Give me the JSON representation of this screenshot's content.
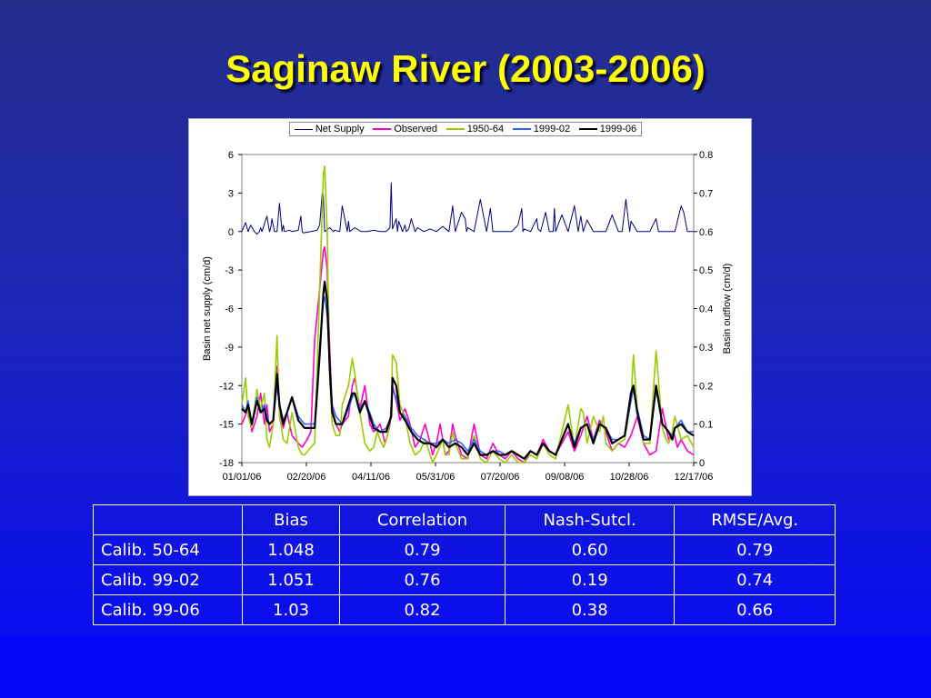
{
  "title": "Saginaw River (2003-2006)",
  "chart_data": {
    "type": "line",
    "xlabel": "",
    "ylabel": "Basin net supply (cm/d)",
    "y2label": "Basin outflow (cm/d)",
    "ylim": [
      -18,
      6
    ],
    "y2lim": [
      0,
      0.8
    ],
    "yticks": [
      "6",
      "3",
      "0",
      "-3",
      "-6",
      "-9",
      "-12",
      "-15",
      "-18"
    ],
    "y2ticks": [
      "0.8",
      "0.7",
      "0.6",
      "0.5",
      "0.4",
      "0.3",
      "0.2",
      "0.1",
      "0"
    ],
    "xticks": [
      "01/01/06",
      "02/20/06",
      "04/11/06",
      "05/31/06",
      "07/20/06",
      "09/08/06",
      "10/28/06",
      "12/17/06"
    ],
    "xlim": [
      0,
      360
    ],
    "grid": false,
    "legend": "top-center",
    "series": [
      {
        "name": "Net Supply",
        "axis": "left",
        "color": "#000080",
        "width": 1,
        "x": [
          0,
          3,
          5,
          7,
          10,
          12,
          14,
          15,
          16,
          20,
          22,
          23,
          24,
          26,
          28,
          30,
          32,
          33,
          34,
          38,
          40,
          45,
          47,
          48,
          49,
          55,
          60,
          62,
          64,
          65,
          66,
          70,
          72,
          73,
          74,
          78,
          80,
          82,
          84,
          85,
          86,
          90,
          95,
          100,
          105,
          110,
          115,
          118,
          119,
          120,
          123,
          124,
          125,
          128,
          130,
          131,
          133,
          135,
          138,
          140,
          145,
          150,
          155,
          160,
          165,
          168,
          169,
          170,
          175,
          178,
          179,
          180,
          185,
          190,
          195,
          198,
          200,
          205,
          210,
          215,
          220,
          223,
          224,
          225,
          230,
          235,
          236,
          238,
          242,
          245,
          248,
          249,
          250,
          255,
          260,
          265,
          268,
          270,
          272,
          275,
          280,
          285,
          290,
          295,
          300,
          303,
          306,
          309,
          310,
          315,
          320,
          325,
          330,
          332,
          335,
          340,
          345,
          350,
          352,
          355,
          360
        ],
        "y": [
          0,
          0.7,
          0,
          0.5,
          0,
          -0.2,
          0,
          0.3,
          0,
          1.2,
          0,
          0.3,
          1.0,
          0,
          0,
          2.2,
          0,
          0.5,
          0,
          0.1,
          0,
          0.1,
          1.2,
          0,
          -0.1,
          0,
          0.1,
          0.5,
          3.0,
          2.8,
          0,
          0.3,
          0.1,
          0,
          0.1,
          0,
          2.0,
          1.0,
          0,
          0.8,
          0,
          0.3,
          0,
          0,
          0.1,
          0,
          0,
          0.3,
          3.8,
          0.2,
          1.0,
          0,
          0.8,
          0,
          0.5,
          0,
          0.2,
          1.0,
          0,
          0.3,
          0,
          0.2,
          0,
          0.4,
          0,
          2.0,
          1.0,
          0,
          1.5,
          1.0,
          0,
          0.3,
          0,
          2.5,
          0,
          1.8,
          0,
          0,
          0,
          0,
          0.5,
          1.8,
          0,
          0.2,
          0,
          1.0,
          0.2,
          0,
          1.5,
          0,
          0,
          1.8,
          0,
          1.3,
          0,
          2.0,
          0,
          1.2,
          0,
          0.9,
          0,
          0,
          0,
          1.3,
          0,
          0,
          2.5,
          0,
          0.8,
          0,
          0,
          0,
          1.0,
          0,
          0,
          0,
          0,
          2.0,
          1.5,
          0,
          0
        ]
      },
      {
        "name": "Observed",
        "axis": "right",
        "color": "#ff00cc",
        "width": 1.6,
        "x": [
          0,
          5,
          8,
          12,
          15,
          18,
          20,
          22,
          25,
          28,
          30,
          33,
          36,
          40,
          45,
          48,
          52,
          55,
          58,
          62,
          65,
          66,
          68,
          70,
          72,
          75,
          78,
          80,
          85,
          88,
          90,
          94,
          98,
          102,
          105,
          108,
          110,
          112,
          114,
          116,
          118,
          120,
          123,
          126,
          130,
          134,
          138,
          142,
          146,
          150,
          152,
          155,
          158,
          160,
          162,
          165,
          168,
          170,
          175,
          180,
          185,
          190,
          195,
          200,
          205,
          210,
          215,
          220,
          225,
          230,
          235,
          240,
          245,
          250,
          255,
          260,
          265,
          270,
          275,
          280,
          285,
          290,
          295,
          300,
          305,
          310,
          315,
          320,
          325,
          330,
          335,
          340,
          344,
          347,
          350,
          355,
          360
        ],
        "y": [
          0.1,
          0.14,
          0.08,
          0.12,
          0.18,
          0.1,
          0.15,
          0.08,
          0.1,
          0.25,
          0.13,
          0.09,
          0.13,
          0.07,
          0.05,
          0.04,
          0.06,
          0.08,
          0.32,
          0.45,
          0.55,
          0.56,
          0.5,
          0.3,
          0.14,
          0.1,
          0.08,
          0.1,
          0.12,
          0.2,
          0.22,
          0.14,
          0.2,
          0.1,
          0.08,
          0.09,
          0.1,
          0.08,
          0.05,
          0.07,
          0.1,
          0.2,
          0.16,
          0.11,
          0.14,
          0.1,
          0.04,
          0.06,
          0.1,
          0.05,
          0.02,
          0.05,
          0.1,
          0.06,
          0.02,
          0.03,
          0.1,
          0.07,
          0.02,
          0.01,
          0.1,
          0.02,
          0.01,
          0.05,
          0.02,
          0.01,
          0.03,
          0.01,
          0.0,
          0.03,
          0.02,
          0.06,
          0.03,
          0.02,
          0.05,
          0.08,
          0.03,
          0.07,
          0.12,
          0.06,
          0.11,
          0.08,
          0.03,
          0.05,
          0.04,
          0.07,
          0.12,
          0.05,
          0.02,
          0.03,
          0.14,
          0.06,
          0.08,
          0.04,
          0.06,
          0.03,
          0.02
        ]
      },
      {
        "name": "1950-64",
        "axis": "right",
        "color": "#99cc00",
        "width": 1.6,
        "x": [
          0,
          3,
          5,
          8,
          12,
          15,
          18,
          20,
          22,
          25,
          28,
          30,
          33,
          36,
          40,
          45,
          48,
          50,
          55,
          58,
          62,
          65,
          66,
          68,
          70,
          72,
          75,
          78,
          80,
          85,
          88,
          90,
          94,
          98,
          102,
          105,
          108,
          110,
          113,
          116,
          119,
          120,
          123,
          126,
          130,
          134,
          138,
          142,
          146,
          150,
          152,
          155,
          160,
          162,
          165,
          168,
          170,
          175,
          180,
          185,
          190,
          195,
          200,
          205,
          210,
          215,
          220,
          225,
          230,
          235,
          240,
          245,
          250,
          255,
          260,
          265,
          270,
          272,
          275,
          280,
          285,
          288,
          290,
          295,
          300,
          305,
          310,
          312,
          315,
          320,
          325,
          330,
          335,
          338,
          340,
          343,
          345,
          350,
          355,
          360
        ],
        "y": [
          0.15,
          0.22,
          0.12,
          0.09,
          0.19,
          0.14,
          0.18,
          0.06,
          0.04,
          0.1,
          0.33,
          0.12,
          0.06,
          0.05,
          0.13,
          0.04,
          0.02,
          0.02,
          0.04,
          0.05,
          0.45,
          0.75,
          0.77,
          0.6,
          0.22,
          0.1,
          0.07,
          0.07,
          0.15,
          0.2,
          0.27,
          0.23,
          0.13,
          0.05,
          0.03,
          0.04,
          0.08,
          0.06,
          0.04,
          0.07,
          0.13,
          0.28,
          0.26,
          0.15,
          0.12,
          0.05,
          0.02,
          0.03,
          0.06,
          0.02,
          0.0,
          0.02,
          0.06,
          0.02,
          0.02,
          0.08,
          0.05,
          0.01,
          0.01,
          0.07,
          0.01,
          0.0,
          0.03,
          0.01,
          0.0,
          0.02,
          0.0,
          0.0,
          0.02,
          0.01,
          0.05,
          0.02,
          0.01,
          0.08,
          0.15,
          0.04,
          0.14,
          0.13,
          0.05,
          0.12,
          0.08,
          0.12,
          0.05,
          0.03,
          0.05,
          0.06,
          0.16,
          0.28,
          0.14,
          0.05,
          0.05,
          0.29,
          0.09,
          0.06,
          0.05,
          0.08,
          0.12,
          0.06,
          0.07,
          0.04
        ]
      },
      {
        "name": "1999-02",
        "axis": "right",
        "color": "#3366ff",
        "width": 1.6,
        "x": [
          0,
          3,
          5,
          8,
          12,
          15,
          18,
          20,
          22,
          25,
          28,
          30,
          33,
          36,
          40,
          45,
          50,
          55,
          58,
          62,
          65,
          66,
          68,
          70,
          72,
          75,
          80,
          85,
          88,
          90,
          94,
          98,
          102,
          105,
          110,
          115,
          119,
          120,
          123,
          126,
          130,
          135,
          140,
          145,
          150,
          155,
          160,
          165,
          170,
          175,
          180,
          185,
          190,
          195,
          200,
          205,
          210,
          215,
          220,
          225,
          230,
          235,
          240,
          245,
          250,
          255,
          260,
          265,
          270,
          275,
          280,
          285,
          290,
          295,
          300,
          305,
          310,
          312,
          315,
          320,
          325,
          330,
          335,
          340,
          343,
          345,
          350,
          355,
          360
        ],
        "y": [
          0.15,
          0.13,
          0.16,
          0.1,
          0.17,
          0.13,
          0.15,
          0.12,
          0.1,
          0.11,
          0.2,
          0.15,
          0.11,
          0.13,
          0.17,
          0.12,
          0.1,
          0.1,
          0.1,
          0.3,
          0.42,
          0.43,
          0.38,
          0.25,
          0.15,
          0.12,
          0.1,
          0.14,
          0.17,
          0.18,
          0.14,
          0.16,
          0.13,
          0.1,
          0.08,
          0.09,
          0.12,
          0.19,
          0.17,
          0.13,
          0.12,
          0.09,
          0.07,
          0.06,
          0.05,
          0.05,
          0.06,
          0.05,
          0.06,
          0.05,
          0.03,
          0.06,
          0.03,
          0.02,
          0.03,
          0.03,
          0.02,
          0.03,
          0.02,
          0.01,
          0.03,
          0.02,
          0.05,
          0.03,
          0.02,
          0.06,
          0.1,
          0.05,
          0.09,
          0.1,
          0.06,
          0.1,
          0.09,
          0.06,
          0.06,
          0.07,
          0.16,
          0.19,
          0.14,
          0.07,
          0.06,
          0.19,
          0.1,
          0.08,
          0.07,
          0.09,
          0.11,
          0.08,
          0.08
        ]
      },
      {
        "name": "1999-06",
        "axis": "right",
        "color": "#000000",
        "width": 2.2,
        "x": [
          0,
          3,
          5,
          8,
          12,
          15,
          18,
          20,
          22,
          25,
          28,
          30,
          33,
          36,
          40,
          45,
          50,
          55,
          58,
          62,
          65,
          66,
          68,
          70,
          72,
          75,
          80,
          85,
          88,
          90,
          94,
          98,
          102,
          105,
          110,
          115,
          119,
          120,
          123,
          126,
          130,
          135,
          140,
          145,
          150,
          155,
          160,
          165,
          170,
          175,
          180,
          185,
          190,
          195,
          200,
          205,
          210,
          215,
          220,
          225,
          230,
          235,
          240,
          245,
          250,
          255,
          260,
          265,
          270,
          275,
          280,
          285,
          290,
          295,
          300,
          305,
          310,
          312,
          315,
          320,
          325,
          330,
          335,
          340,
          343,
          345,
          350,
          355,
          360
        ],
        "y": [
          0.14,
          0.13,
          0.15,
          0.1,
          0.16,
          0.13,
          0.14,
          0.11,
          0.1,
          0.11,
          0.23,
          0.15,
          0.1,
          0.13,
          0.17,
          0.11,
          0.09,
          0.09,
          0.09,
          0.28,
          0.44,
          0.47,
          0.42,
          0.25,
          0.13,
          0.1,
          0.1,
          0.15,
          0.18,
          0.18,
          0.13,
          0.16,
          0.12,
          0.09,
          0.08,
          0.08,
          0.12,
          0.22,
          0.2,
          0.13,
          0.11,
          0.08,
          0.06,
          0.05,
          0.05,
          0.04,
          0.06,
          0.04,
          0.05,
          0.04,
          0.02,
          0.05,
          0.02,
          0.02,
          0.03,
          0.02,
          0.02,
          0.03,
          0.02,
          0.01,
          0.03,
          0.02,
          0.05,
          0.03,
          0.02,
          0.06,
          0.1,
          0.04,
          0.09,
          0.1,
          0.05,
          0.1,
          0.09,
          0.05,
          0.06,
          0.07,
          0.18,
          0.2,
          0.13,
          0.06,
          0.06,
          0.2,
          0.1,
          0.08,
          0.06,
          0.09,
          0.1,
          0.08,
          0.07
        ]
      }
    ]
  },
  "table": {
    "headers": [
      "",
      "Bias",
      "Correlation",
      "Nash-Sutcl.",
      "RMSE/Avg."
    ],
    "rows": [
      [
        "Calib. 50-64",
        "1.048",
        "0.79",
        "0.60",
        "0.79"
      ],
      [
        "Calib. 99-02",
        "1.051",
        "0.76",
        "0.19",
        "0.74"
      ],
      [
        "Calib. 99-06",
        "1.03",
        "0.82",
        "0.38",
        "0.66"
      ]
    ]
  }
}
